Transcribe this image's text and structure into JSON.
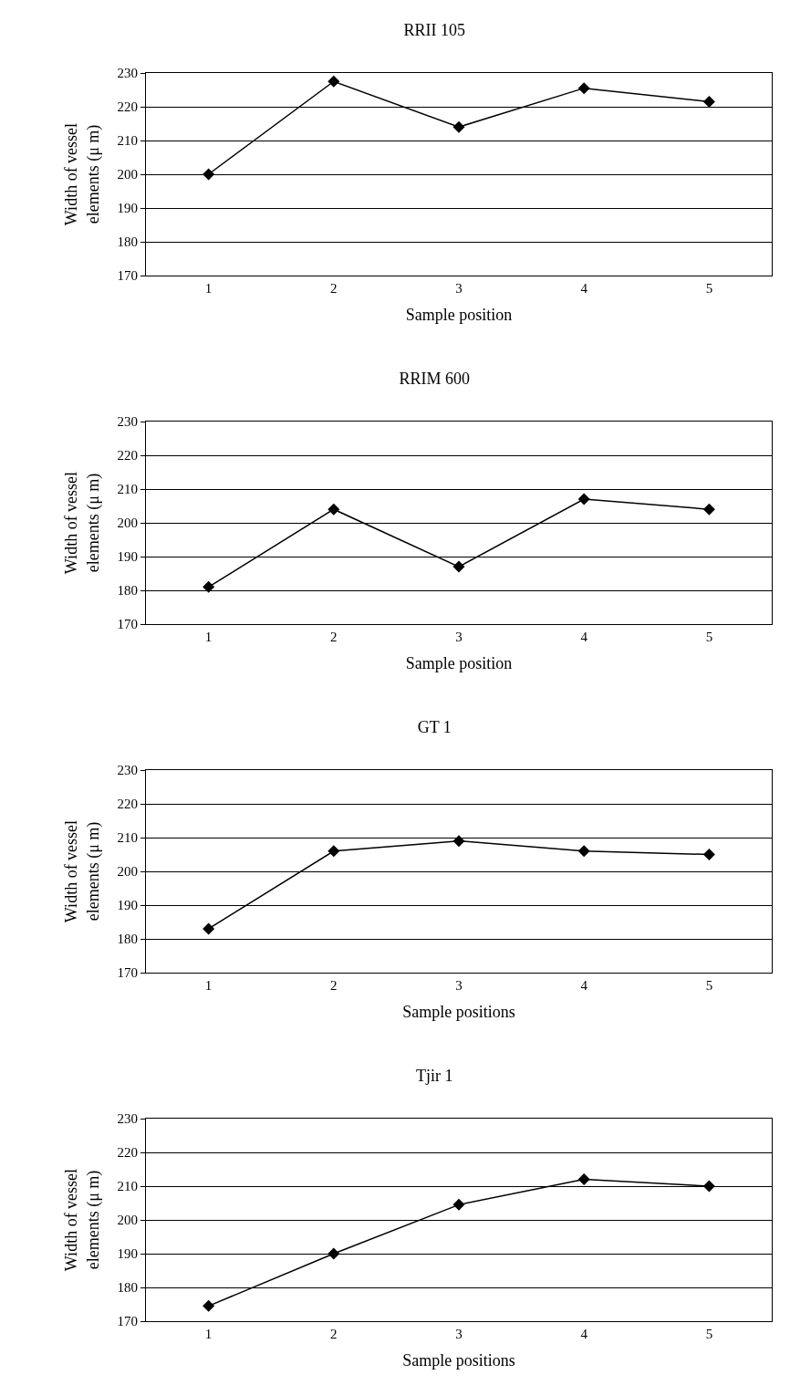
{
  "chart_data": [
    {
      "type": "line",
      "title": "RRII 105",
      "xlabel": "Sample position",
      "ylabel": "Width of vessel elements (μ m)",
      "categories": [
        "1",
        "2",
        "3",
        "4",
        "5"
      ],
      "series": [
        {
          "color": "#000000",
          "values": [
            200,
            227.5,
            214,
            225.5,
            221.5
          ]
        }
      ],
      "ylim": [
        170,
        230
      ],
      "yticks": [
        170,
        180,
        190,
        200,
        210,
        220,
        230
      ],
      "grid": "y",
      "marker": "diamond",
      "line_style": "solid"
    },
    {
      "type": "line",
      "title": "RRIM 600",
      "xlabel": "Sample position",
      "ylabel": "Width of vessel elements (μ m)",
      "categories": [
        "1",
        "2",
        "3",
        "4",
        "5"
      ],
      "series": [
        {
          "color": "#000000",
          "values": [
            181,
            204,
            187,
            207,
            204
          ]
        }
      ],
      "ylim": [
        170,
        230
      ],
      "yticks": [
        170,
        180,
        190,
        200,
        210,
        220,
        230
      ],
      "grid": "y",
      "marker": "diamond",
      "line_style": "solid"
    },
    {
      "type": "line",
      "title": "GT 1",
      "xlabel": "Sample positions",
      "ylabel": "Width of vessel elements (μ m)",
      "categories": [
        "1",
        "2",
        "3",
        "4",
        "5"
      ],
      "series": [
        {
          "color": "#000000",
          "values": [
            183,
            206,
            209,
            206,
            205
          ]
        }
      ],
      "ylim": [
        170,
        230
      ],
      "yticks": [
        170,
        180,
        190,
        200,
        210,
        220,
        230
      ],
      "grid": "y",
      "marker": "diamond",
      "line_style": "solid"
    },
    {
      "type": "line",
      "title": "Tjir 1",
      "xlabel": "Sample positions",
      "ylabel": "Width of vessel elements (μ m)",
      "categories": [
        "1",
        "2",
        "3",
        "4",
        "5"
      ],
      "series": [
        {
          "color": "#000000",
          "values": [
            174.5,
            190,
            204.5,
            212,
            210
          ]
        }
      ],
      "ylim": [
        170,
        230
      ],
      "yticks": [
        170,
        180,
        190,
        200,
        210,
        220,
        230
      ],
      "grid": "y",
      "marker": "diamond",
      "line_style": "solid"
    }
  ]
}
